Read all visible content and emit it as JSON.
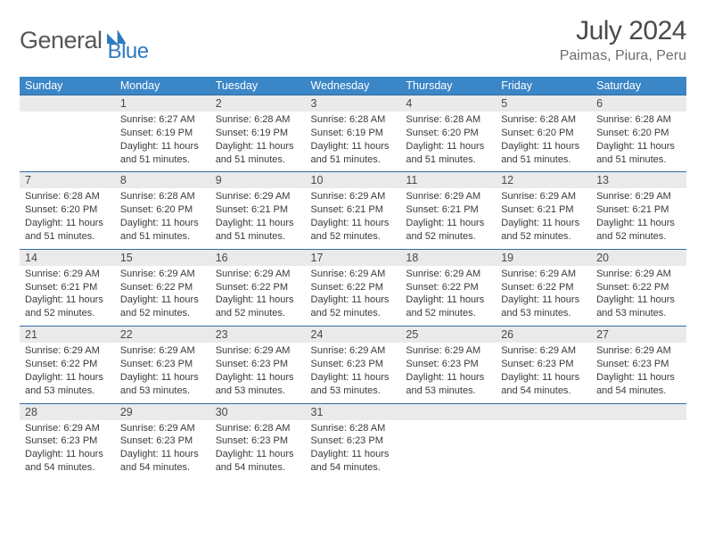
{
  "brand": {
    "word1": "General",
    "word2": "Blue"
  },
  "page": {
    "month_title": "July 2024",
    "location": "Paimas, Piura, Peru"
  },
  "colors": {
    "header_bg": "#3b86c7",
    "rule": "#2f6aa0",
    "daynum_bg": "#eaeaea",
    "brand_blue": "#2f7bbf",
    "text": "#333333",
    "background": "#ffffff"
  },
  "weekdays": [
    "Sunday",
    "Monday",
    "Tuesday",
    "Wednesday",
    "Thursday",
    "Friday",
    "Saturday"
  ],
  "labels": {
    "sunrise": "Sunrise:",
    "sunset": "Sunset:",
    "daylight": "Daylight:"
  },
  "weeks": [
    [
      null,
      {
        "n": "1",
        "sr": "6:27 AM",
        "ss": "6:19 PM",
        "dl": "11 hours and 51 minutes."
      },
      {
        "n": "2",
        "sr": "6:28 AM",
        "ss": "6:19 PM",
        "dl": "11 hours and 51 minutes."
      },
      {
        "n": "3",
        "sr": "6:28 AM",
        "ss": "6:19 PM",
        "dl": "11 hours and 51 minutes."
      },
      {
        "n": "4",
        "sr": "6:28 AM",
        "ss": "6:20 PM",
        "dl": "11 hours and 51 minutes."
      },
      {
        "n": "5",
        "sr": "6:28 AM",
        "ss": "6:20 PM",
        "dl": "11 hours and 51 minutes."
      },
      {
        "n": "6",
        "sr": "6:28 AM",
        "ss": "6:20 PM",
        "dl": "11 hours and 51 minutes."
      }
    ],
    [
      {
        "n": "7",
        "sr": "6:28 AM",
        "ss": "6:20 PM",
        "dl": "11 hours and 51 minutes."
      },
      {
        "n": "8",
        "sr": "6:28 AM",
        "ss": "6:20 PM",
        "dl": "11 hours and 51 minutes."
      },
      {
        "n": "9",
        "sr": "6:29 AM",
        "ss": "6:21 PM",
        "dl": "11 hours and 51 minutes."
      },
      {
        "n": "10",
        "sr": "6:29 AM",
        "ss": "6:21 PM",
        "dl": "11 hours and 52 minutes."
      },
      {
        "n": "11",
        "sr": "6:29 AM",
        "ss": "6:21 PM",
        "dl": "11 hours and 52 minutes."
      },
      {
        "n": "12",
        "sr": "6:29 AM",
        "ss": "6:21 PM",
        "dl": "11 hours and 52 minutes."
      },
      {
        "n": "13",
        "sr": "6:29 AM",
        "ss": "6:21 PM",
        "dl": "11 hours and 52 minutes."
      }
    ],
    [
      {
        "n": "14",
        "sr": "6:29 AM",
        "ss": "6:21 PM",
        "dl": "11 hours and 52 minutes."
      },
      {
        "n": "15",
        "sr": "6:29 AM",
        "ss": "6:22 PM",
        "dl": "11 hours and 52 minutes."
      },
      {
        "n": "16",
        "sr": "6:29 AM",
        "ss": "6:22 PM",
        "dl": "11 hours and 52 minutes."
      },
      {
        "n": "17",
        "sr": "6:29 AM",
        "ss": "6:22 PM",
        "dl": "11 hours and 52 minutes."
      },
      {
        "n": "18",
        "sr": "6:29 AM",
        "ss": "6:22 PM",
        "dl": "11 hours and 52 minutes."
      },
      {
        "n": "19",
        "sr": "6:29 AM",
        "ss": "6:22 PM",
        "dl": "11 hours and 53 minutes."
      },
      {
        "n": "20",
        "sr": "6:29 AM",
        "ss": "6:22 PM",
        "dl": "11 hours and 53 minutes."
      }
    ],
    [
      {
        "n": "21",
        "sr": "6:29 AM",
        "ss": "6:22 PM",
        "dl": "11 hours and 53 minutes."
      },
      {
        "n": "22",
        "sr": "6:29 AM",
        "ss": "6:23 PM",
        "dl": "11 hours and 53 minutes."
      },
      {
        "n": "23",
        "sr": "6:29 AM",
        "ss": "6:23 PM",
        "dl": "11 hours and 53 minutes."
      },
      {
        "n": "24",
        "sr": "6:29 AM",
        "ss": "6:23 PM",
        "dl": "11 hours and 53 minutes."
      },
      {
        "n": "25",
        "sr": "6:29 AM",
        "ss": "6:23 PM",
        "dl": "11 hours and 53 minutes."
      },
      {
        "n": "26",
        "sr": "6:29 AM",
        "ss": "6:23 PM",
        "dl": "11 hours and 54 minutes."
      },
      {
        "n": "27",
        "sr": "6:29 AM",
        "ss": "6:23 PM",
        "dl": "11 hours and 54 minutes."
      }
    ],
    [
      {
        "n": "28",
        "sr": "6:29 AM",
        "ss": "6:23 PM",
        "dl": "11 hours and 54 minutes."
      },
      {
        "n": "29",
        "sr": "6:29 AM",
        "ss": "6:23 PM",
        "dl": "11 hours and 54 minutes."
      },
      {
        "n": "30",
        "sr": "6:28 AM",
        "ss": "6:23 PM",
        "dl": "11 hours and 54 minutes."
      },
      {
        "n": "31",
        "sr": "6:28 AM",
        "ss": "6:23 PM",
        "dl": "11 hours and 54 minutes."
      },
      null,
      null,
      null
    ]
  ]
}
